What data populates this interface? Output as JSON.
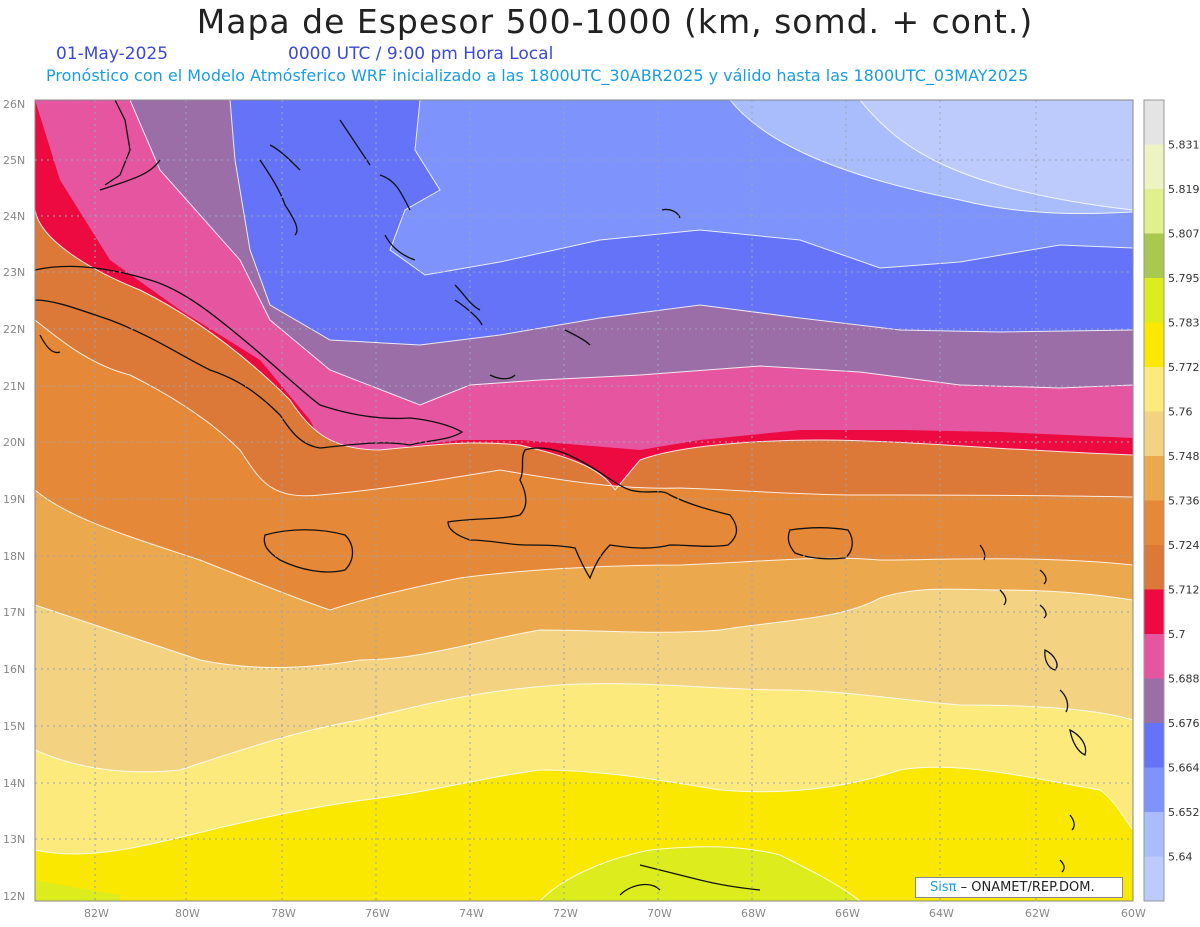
{
  "header": {
    "title": "Mapa de Espesor 500-1000 (km, somd. + cont.)",
    "date": "01-May-2025",
    "time": "0000 UTC / 9:00 pm Hora Local",
    "subtitle": "Pronóstico con el Modelo Atmósferico WRF inicializado a las 1800UTC_30ABR2025 y válido hasta las  1800UTC_03MAY2025"
  },
  "map": {
    "lat_labels": [
      "26N",
      "25N",
      "24N",
      "23N",
      "22N",
      "21N",
      "20N",
      "19N",
      "18N",
      "17N",
      "16N",
      "15N",
      "14N",
      "13N",
      "12N"
    ],
    "lon_labels": [
      "82W",
      "80W",
      "78W",
      "76W",
      "74W",
      "72W",
      "70W",
      "68W",
      "66W",
      "64W",
      "62W",
      "60W"
    ],
    "region": "Caribbean / Hispaniola"
  },
  "colorbar": {
    "labels": [
      "5.831",
      "5.819",
      "5.807",
      "5.795",
      "5.783",
      "5.772",
      "5.76",
      "5.748",
      "5.736",
      "5.724",
      "5.712",
      "5.7",
      "5.688",
      "5.676",
      "5.664",
      "5.652",
      "5.64"
    ],
    "colors": [
      "#e4e4e4",
      "#eef3c4",
      "#e0f08c",
      "#a8c850",
      "#dcec1c",
      "#fae800",
      "#fdea7c",
      "#f3d282",
      "#eba84c",
      "#e58838",
      "#dc7838",
      "#ec0a40",
      "#e555a0",
      "#9b6ea8",
      "#6473f8",
      "#7e93fc",
      "#a9bdfc",
      "#bccafc"
    ]
  },
  "logo": {
    "sis": "Sisπ",
    "org": "– ONAMET/REP.DOM."
  }
}
